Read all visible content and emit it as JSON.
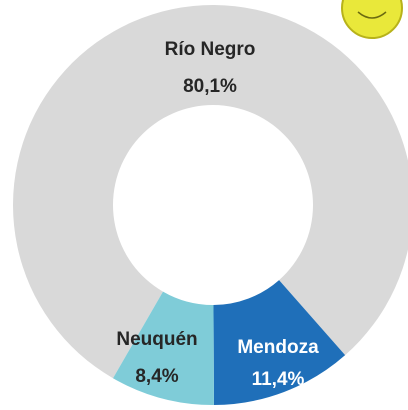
{
  "chart_data": {
    "type": "pie",
    "categories": [
      "Río Negro",
      "Mendoza",
      "Neuquén"
    ],
    "values": [
      80.1,
      11.4,
      8.4
    ],
    "value_labels": [
      "80,1%",
      "11,4%",
      "8,4%"
    ],
    "colors": [
      "#d9d9d9",
      "#1f6fb9",
      "#7fccd8"
    ]
  }
}
